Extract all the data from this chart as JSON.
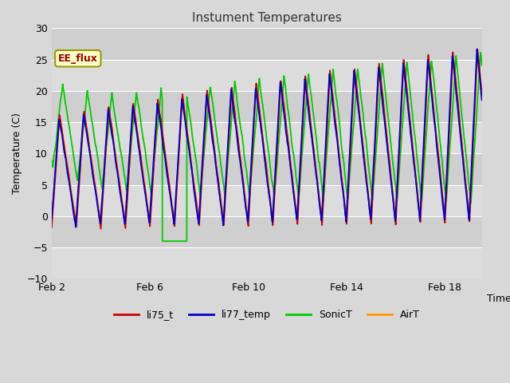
{
  "title": "Instument Temperatures",
  "ylabel": "Temperature (C)",
  "xlabel": "Time",
  "ylim": [
    -10,
    30
  ],
  "xlim": [
    0,
    17.5
  ],
  "yticks": [
    -10,
    -5,
    0,
    5,
    10,
    15,
    20,
    25,
    30
  ],
  "xtick_positions": [
    0,
    4,
    8,
    12,
    16
  ],
  "xtick_labels": [
    "Feb 2",
    "Feb 6",
    "Feb 10",
    "Feb 14",
    "Feb 18"
  ],
  "bg_color": "#d8d8d8",
  "plot_bg_color": "#d8d8d8",
  "white_band_color": "#e8e8e8",
  "line_colors": {
    "li75_t": "#cc0000",
    "li77_temp": "#0000cc",
    "SonicT": "#00cc00",
    "AirT": "#ff9900"
  },
  "legend_label": "EE_flux",
  "legend_box_color": "#ffffcc",
  "legend_box_edge": "#999900",
  "title_color": "#333333",
  "num_days": 17.5,
  "num_cycles": 9,
  "seed": 42
}
